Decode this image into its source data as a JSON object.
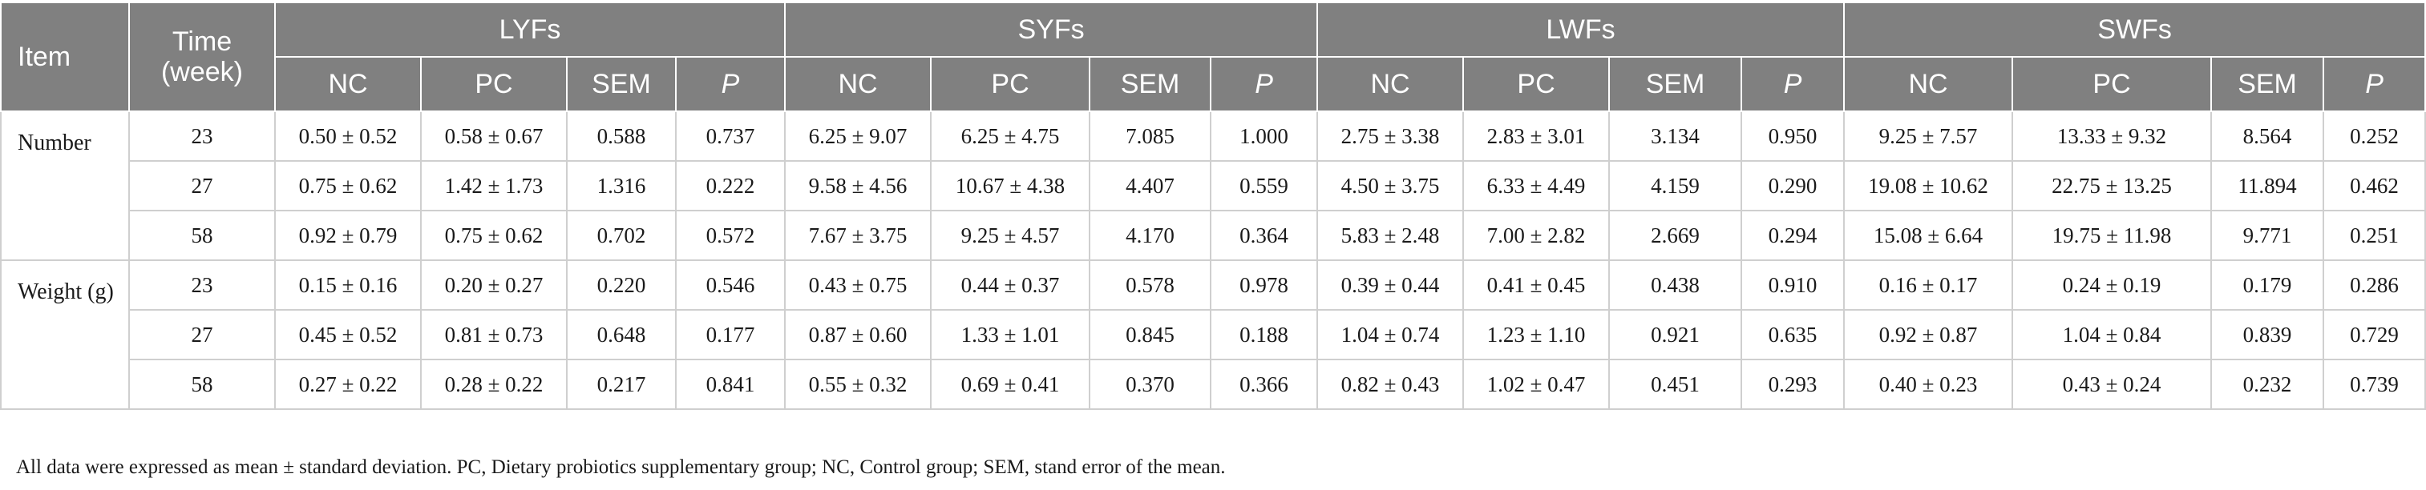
{
  "header": {
    "item": "Item",
    "time": "Time (week)",
    "groups": [
      "LYFs",
      "SYFs",
      "LWFs",
      "SWFs"
    ],
    "subcols": [
      "NC",
      "PC",
      "SEM",
      "P"
    ]
  },
  "sections": [
    {
      "label": "Number",
      "rows": [
        {
          "time": "23",
          "cells": [
            "0.50 ± 0.52",
            "0.58 ± 0.67",
            "0.588",
            "0.737",
            "6.25 ± 9.07",
            "6.25 ± 4.75",
            "7.085",
            "1.000",
            "2.75 ± 3.38",
            "2.83 ± 3.01",
            "3.134",
            "0.950",
            "9.25 ± 7.57",
            "13.33 ± 9.32",
            "8.564",
            "0.252"
          ]
        },
        {
          "time": "27",
          "cells": [
            "0.75 ± 0.62",
            "1.42 ± 1.73",
            "1.316",
            "0.222",
            "9.58 ± 4.56",
            "10.67 ± 4.38",
            "4.407",
            "0.559",
            "4.50 ± 3.75",
            "6.33 ± 4.49",
            "4.159",
            "0.290",
            "19.08 ± 10.62",
            "22.75 ± 13.25",
            "11.894",
            "0.462"
          ]
        },
        {
          "time": "58",
          "cells": [
            "0.92 ± 0.79",
            "0.75 ± 0.62",
            "0.702",
            "0.572",
            "7.67 ± 3.75",
            "9.25 ± 4.57",
            "4.170",
            "0.364",
            "5.83 ± 2.48",
            "7.00 ± 2.82",
            "2.669",
            "0.294",
            "15.08 ± 6.64",
            "19.75 ± 11.98",
            "9.771",
            "0.251"
          ]
        }
      ]
    },
    {
      "label": "Weight (g)",
      "rows": [
        {
          "time": "23",
          "cells": [
            "0.15 ± 0.16",
            "0.20 ± 0.27",
            "0.220",
            "0.546",
            "0.43 ± 0.75",
            "0.44 ± 0.37",
            "0.578",
            "0.978",
            "0.39 ± 0.44",
            "0.41 ± 0.45",
            "0.438",
            "0.910",
            "0.16 ± 0.17",
            "0.24 ± 0.19",
            "0.179",
            "0.286"
          ]
        },
        {
          "time": "27",
          "cells": [
            "0.45 ± 0.52",
            "0.81 ± 0.73",
            "0.648",
            "0.177",
            "0.87 ± 0.60",
            "1.33 ± 1.01",
            "0.845",
            "0.188",
            "1.04 ± 0.74",
            "1.23 ± 1.10",
            "0.921",
            "0.635",
            "0.92 ± 0.87",
            "1.04 ± 0.84",
            "0.839",
            "0.729"
          ]
        },
        {
          "time": "58",
          "cells": [
            "0.27 ± 0.22",
            "0.28 ± 0.22",
            "0.217",
            "0.841",
            "0.55 ± 0.32",
            "0.69 ± 0.41",
            "0.370",
            "0.366",
            "0.82 ± 0.43",
            "1.02 ± 0.47",
            "0.451",
            "0.293",
            "0.40 ± 0.23",
            "0.43 ± 0.24",
            "0.232",
            "0.739"
          ]
        }
      ]
    }
  ],
  "footnote": "All data were expressed as mean ± standard deviation. PC, Dietary probiotics supplementary group; NC, Control group; SEM, stand error of the mean."
}
